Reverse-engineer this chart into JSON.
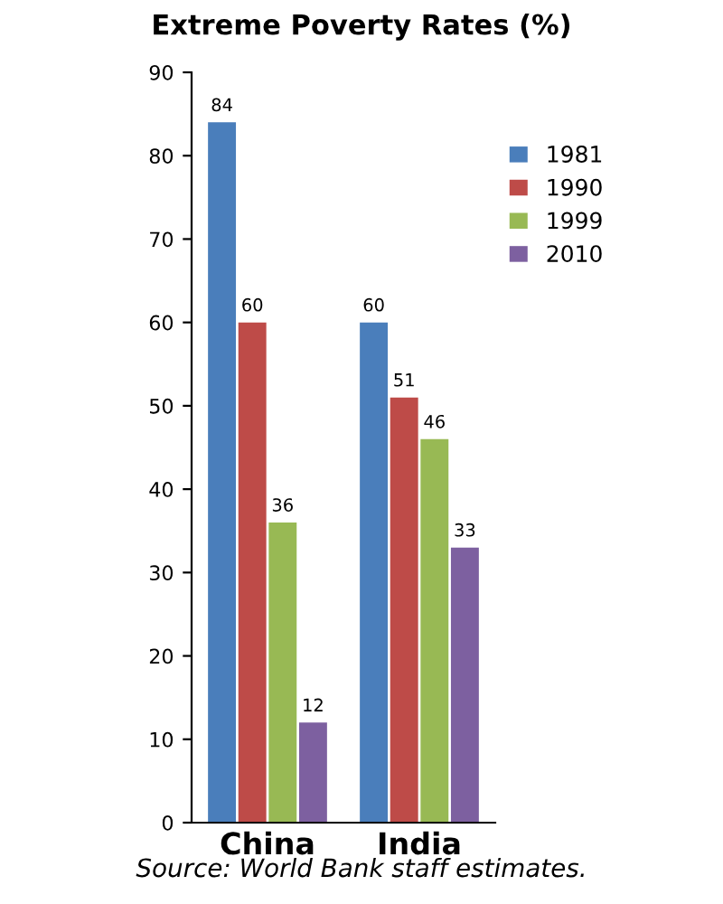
{
  "chart_data": {
    "type": "bar",
    "title": "Extreme Poverty Rates (%)",
    "categories": [
      "China",
      "India"
    ],
    "series": [
      {
        "name": "1981",
        "color": "#4a7ebb",
        "values": [
          84,
          60
        ]
      },
      {
        "name": "1990",
        "color": "#be4b48",
        "values": [
          60,
          51
        ]
      },
      {
        "name": "1999",
        "color": "#98b954",
        "values": [
          36,
          46
        ]
      },
      {
        "name": "2010",
        "color": "#7d60a0",
        "values": [
          12,
          33
        ]
      }
    ],
    "ylim": [
      0,
      90
    ],
    "yticks": [
      0,
      10,
      20,
      30,
      40,
      50,
      60,
      70,
      80,
      90
    ],
    "grid": false,
    "legend": "top right",
    "data_labels": true,
    "annotations": [
      "Source: World Bank staff estimates."
    ]
  }
}
